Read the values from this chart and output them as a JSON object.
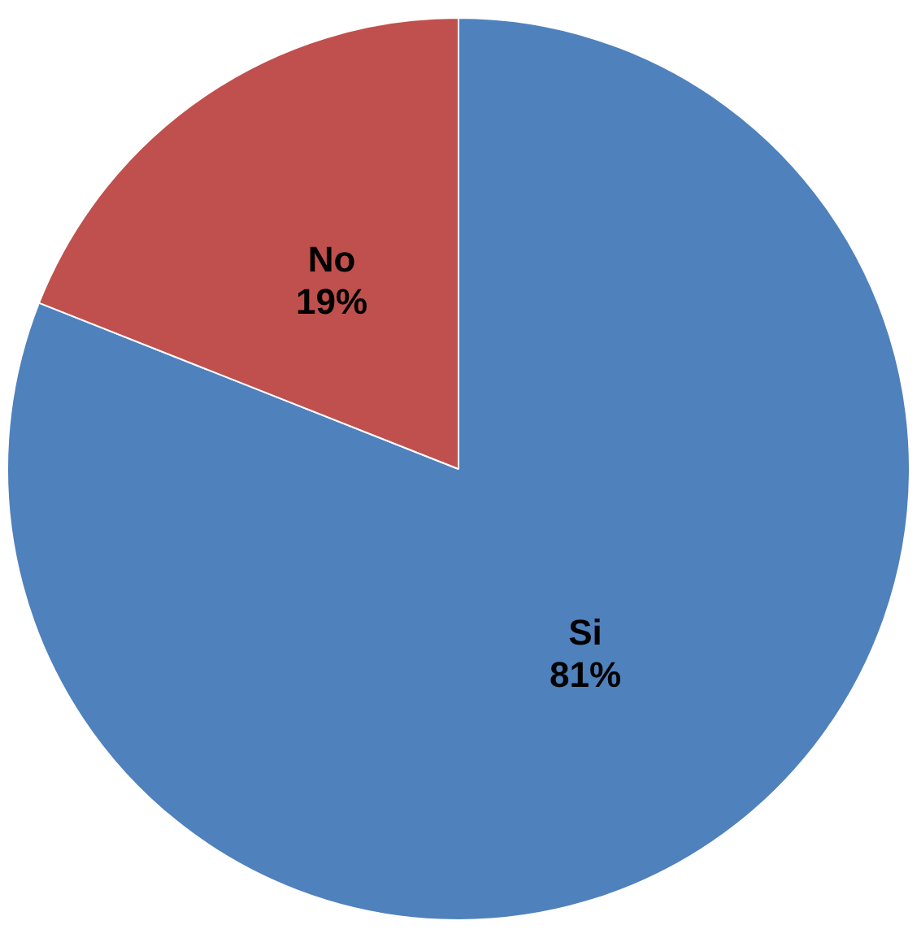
{
  "chart_data": {
    "type": "pie",
    "categories": [
      "Si",
      "No"
    ],
    "values": [
      81,
      19
    ],
    "colors": [
      "#4f81bd",
      "#c0504d"
    ],
    "value_labels": [
      "81%",
      "19%"
    ],
    "legend": false
  }
}
